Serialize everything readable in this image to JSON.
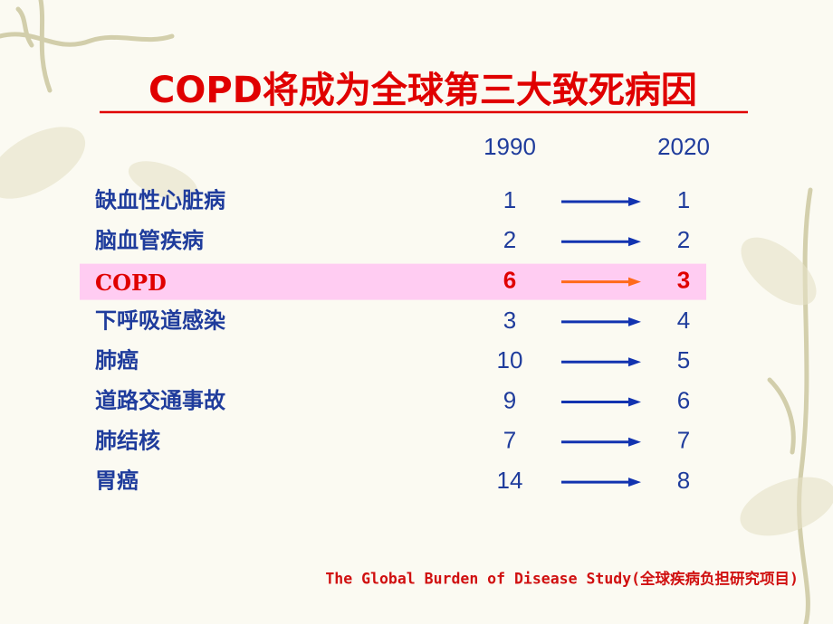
{
  "title": "COPD将成为全球第三大致死病因",
  "columns": [
    "1990",
    "2020"
  ],
  "rows": [
    {
      "name": "缺血性心脏病",
      "values": [
        "1",
        "1"
      ]
    },
    {
      "name": "脑血管疾病",
      "values": [
        "2",
        "2"
      ]
    },
    {
      "name": "COPD",
      "values": [
        "6",
        "3"
      ],
      "highlight": true
    },
    {
      "name": "下呼吸道感染",
      "values": [
        "3",
        "4"
      ]
    },
    {
      "name": "肺癌",
      "values": [
        "10",
        "5"
      ]
    },
    {
      "name": "道路交通事故",
      "values": [
        "9",
        "6"
      ]
    },
    {
      "name": "肺结核",
      "values": [
        "7",
        "7"
      ]
    },
    {
      "name": "胃癌",
      "values": [
        "14",
        "8"
      ]
    }
  ],
  "source": "The Global Burden of Disease Study(全球疾病负担研究项目)"
}
